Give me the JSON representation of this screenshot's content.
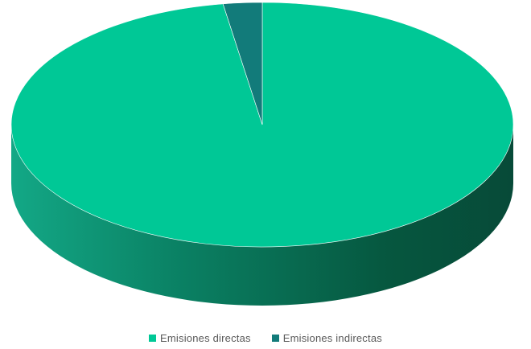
{
  "chart_data": {
    "type": "pie",
    "title": "",
    "style": "3d",
    "categories": [
      "Emisiones directas",
      "Emisiones indirectas"
    ],
    "values": [
      97.5,
      2.5
    ],
    "colors": [
      "#00C896",
      "#127B7A"
    ],
    "legend_position": "bottom"
  },
  "legend": {
    "items": [
      {
        "label": "Emisiones directas",
        "color": "#00C896"
      },
      {
        "label": "Emisiones indirectas",
        "color": "#127B7A"
      }
    ]
  }
}
